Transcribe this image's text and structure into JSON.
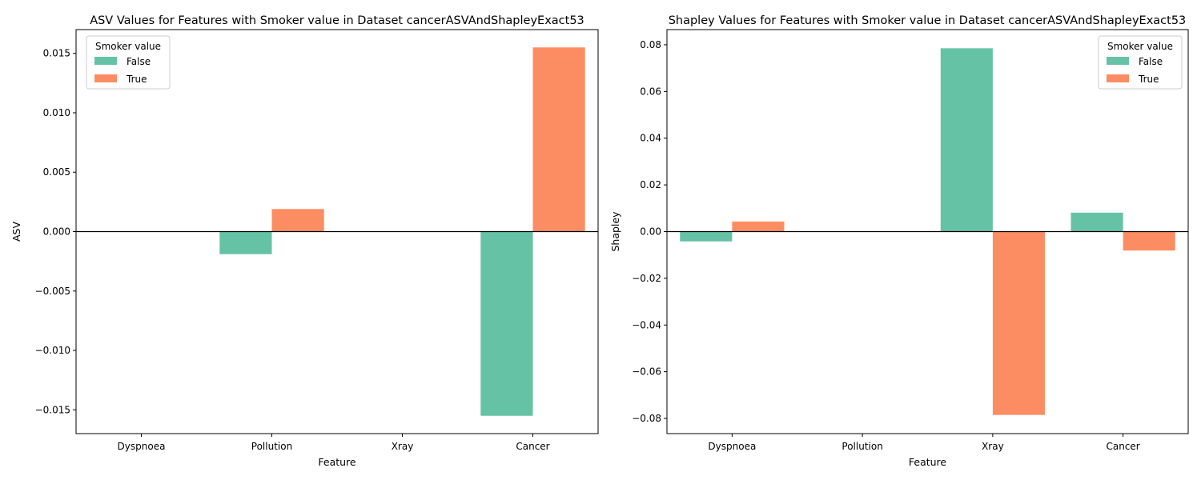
{
  "colors": {
    "false": "#66c2a5",
    "true": "#fc8d62",
    "axis": "#000000",
    "background": "#ffffff"
  },
  "chart_data": [
    {
      "type": "bar",
      "title": "ASV Values for Features with Smoker value in Dataset cancerASVAndShapleyExact53",
      "xlabel": "Feature",
      "ylabel": "ASV",
      "categories": [
        "Dyspnoea",
        "Pollution",
        "Xray",
        "Cancer"
      ],
      "series": [
        {
          "name": "False",
          "values": [
            0,
            -0.0019,
            0,
            -0.0155
          ]
        },
        {
          "name": "True",
          "values": [
            0,
            0.0019,
            0,
            0.0155
          ]
        }
      ],
      "ylim": [
        -0.017,
        0.017
      ],
      "yticks": [
        -0.015,
        -0.01,
        -0.005,
        0.0,
        0.005,
        0.01,
        0.015
      ],
      "ytick_labels": [
        "−0.015",
        "−0.010",
        "−0.005",
        "0.000",
        "0.005",
        "0.010",
        "0.015"
      ],
      "legend": {
        "title": "Smoker value",
        "entries": [
          "False",
          "True"
        ],
        "placement": "top-left"
      },
      "grid": false
    },
    {
      "type": "bar",
      "title": "Shapley Values for Features with Smoker value in Dataset cancerASVAndShapleyExact53",
      "xlabel": "Feature",
      "ylabel": "Shapley",
      "categories": [
        "Dyspnoea",
        "Pollution",
        "Xray",
        "Cancer"
      ],
      "series": [
        {
          "name": "False",
          "values": [
            -0.0042,
            0,
            0.0785,
            0.0081
          ]
        },
        {
          "name": "True",
          "values": [
            0.0043,
            0,
            -0.0785,
            -0.0081
          ]
        }
      ],
      "ylim": [
        -0.0865,
        0.0865
      ],
      "yticks": [
        -0.08,
        -0.06,
        -0.04,
        -0.02,
        0.0,
        0.02,
        0.04,
        0.06,
        0.08
      ],
      "ytick_labels": [
        "−0.08",
        "−0.06",
        "−0.04",
        "−0.02",
        "0.00",
        "0.02",
        "0.04",
        "0.06",
        "0.08"
      ],
      "legend": {
        "title": "Smoker value",
        "entries": [
          "False",
          "True"
        ],
        "placement": "top-right"
      },
      "grid": false
    }
  ]
}
